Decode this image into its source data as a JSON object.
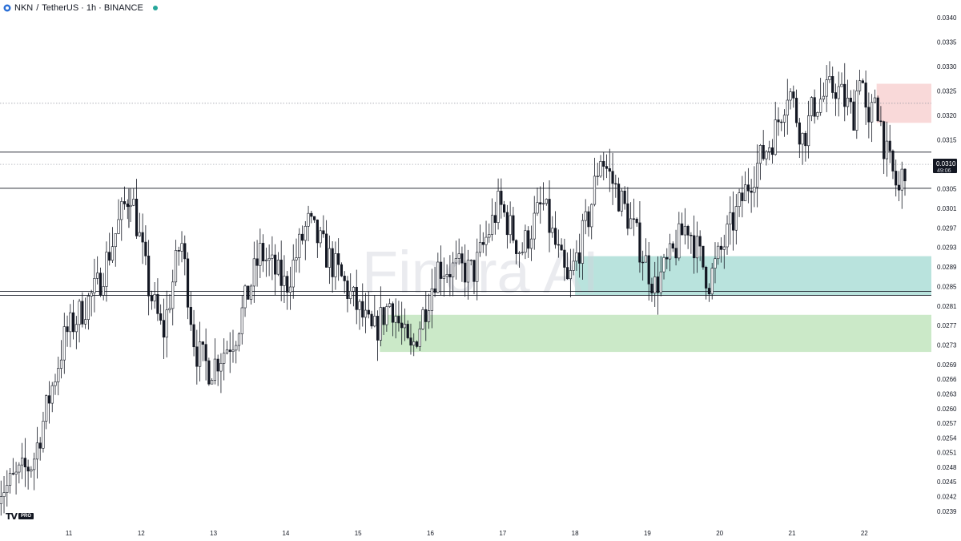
{
  "header": {
    "symbol": "NKN",
    "separator": "/",
    "quote": "TetherUS",
    "interval_exchange": "· 1h · BINANCE",
    "status_color": "#26a69a"
  },
  "watermark": "Finora AI",
  "branding": {
    "tv": "TV",
    "badge": "PRO"
  },
  "chart_data": {
    "type": "candlestick",
    "ylim": [
      0.0237,
      0.0342
    ],
    "price_ticks": [
      "0.0340",
      "0.0335",
      "0.0330",
      "0.0325",
      "0.0320",
      "0.0315",
      "0.0310",
      "0.0305",
      "0.0301",
      "0.0297",
      "0.0293",
      "0.0289",
      "0.0285",
      "0.0281",
      "0.0277",
      "0.0273",
      "0.0269",
      "0.0266",
      "0.0263",
      "0.0260",
      "0.0257",
      "0.0254",
      "0.0251",
      "0.0248",
      "0.0245",
      "0.0242",
      "0.0239"
    ],
    "date_ticks": [
      "11",
      "12",
      "13",
      "14",
      "15",
      "16",
      "17",
      "18",
      "19",
      "20",
      "21",
      "22"
    ],
    "current_price": {
      "value": "0.0310",
      "countdown": "49:06",
      "bg_color": "#131722"
    },
    "horizontal_levels": [
      {
        "price": 0.03125,
        "style": "solid"
      },
      {
        "price": 0.031,
        "style": "dotted"
      },
      {
        "price": 0.03051,
        "style": "solid"
      },
      {
        "price": 0.0284,
        "style": "solid"
      },
      {
        "price": 0.02832,
        "style": "solid"
      },
      {
        "price": 0.03225,
        "style": "dotted"
      }
    ],
    "zones": [
      {
        "name": "supply",
        "x_from": 22.17,
        "x_to": 22.99,
        "y_from": 0.03185,
        "y_to": 0.03265,
        "color": "#f9d9d9"
      },
      {
        "name": "support-teal",
        "x_from": 18.0,
        "x_to": 22.99,
        "y_from": 0.02832,
        "y_to": 0.02912,
        "color": "#b9e3dd"
      },
      {
        "name": "demand-green",
        "x_from": 15.3,
        "x_to": 22.99,
        "y_from": 0.02716,
        "y_to": 0.02792,
        "color": "#cbe9c8"
      }
    ],
    "key_points": [
      {
        "x": 10.15,
        "y": 0.0244
      },
      {
        "x": 10.5,
        "y": 0.0249
      },
      {
        "x": 10.95,
        "y": 0.0275
      },
      {
        "x": 11.4,
        "y": 0.0285
      },
      {
        "x": 11.85,
        "y": 0.0305
      },
      {
        "x": 12.1,
        "y": 0.0285
      },
      {
        "x": 12.3,
        "y": 0.0275
      },
      {
        "x": 12.55,
        "y": 0.0295
      },
      {
        "x": 12.75,
        "y": 0.0272
      },
      {
        "x": 12.95,
        "y": 0.0268
      },
      {
        "x": 13.3,
        "y": 0.0275
      },
      {
        "x": 13.65,
        "y": 0.0292
      },
      {
        "x": 14.0,
        "y": 0.0285
      },
      {
        "x": 14.3,
        "y": 0.0298
      },
      {
        "x": 14.75,
        "y": 0.0287
      },
      {
        "x": 15.2,
        "y": 0.0275
      },
      {
        "x": 15.45,
        "y": 0.0282
      },
      {
        "x": 15.72,
        "y": 0.0271
      },
      {
        "x": 16.1,
        "y": 0.0289
      },
      {
        "x": 16.6,
        "y": 0.0288
      },
      {
        "x": 16.95,
        "y": 0.0302
      },
      {
        "x": 17.25,
        "y": 0.0292
      },
      {
        "x": 17.55,
        "y": 0.0302
      },
      {
        "x": 17.9,
        "y": 0.0285
      },
      {
        "x": 18.2,
        "y": 0.03
      },
      {
        "x": 18.35,
        "y": 0.0312
      },
      {
        "x": 18.8,
        "y": 0.0297
      },
      {
        "x": 19.1,
        "y": 0.0285
      },
      {
        "x": 19.3,
        "y": 0.029
      },
      {
        "x": 19.55,
        "y": 0.0298
      },
      {
        "x": 19.85,
        "y": 0.0286
      },
      {
        "x": 20.15,
        "y": 0.0297
      },
      {
        "x": 20.45,
        "y": 0.0308
      },
      {
        "x": 20.75,
        "y": 0.0316
      },
      {
        "x": 20.95,
        "y": 0.0326
      },
      {
        "x": 21.15,
        "y": 0.0315
      },
      {
        "x": 21.3,
        "y": 0.0322
      },
      {
        "x": 21.6,
        "y": 0.0326
      },
      {
        "x": 21.85,
        "y": 0.032
      },
      {
        "x": 21.95,
        "y": 0.0331
      },
      {
        "x": 22.05,
        "y": 0.0315
      },
      {
        "x": 22.15,
        "y": 0.0325
      },
      {
        "x": 22.3,
        "y": 0.0312
      },
      {
        "x": 22.48,
        "y": 0.0304
      },
      {
        "x": 22.55,
        "y": 0.031
      }
    ]
  }
}
